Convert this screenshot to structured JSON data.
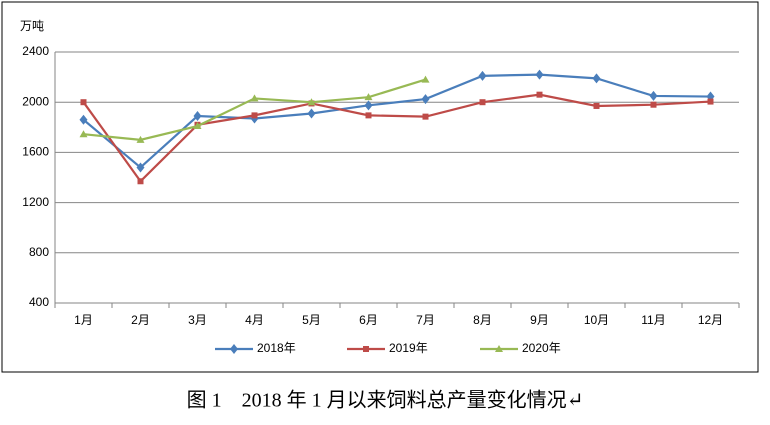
{
  "chart_data": {
    "type": "line",
    "y_label": "万吨",
    "caption": "图 1　2018 年 1 月以来饲料总产量变化情况↵",
    "categories": [
      "1月",
      "2月",
      "3月",
      "4月",
      "5月",
      "6月",
      "7月",
      "8月",
      "9月",
      "10月",
      "11月",
      "12月"
    ],
    "series": [
      {
        "name": "2018年",
        "color": "#4a7ebb",
        "marker": "diamond",
        "values": [
          1860,
          1480,
          1890,
          1870,
          1910,
          1975,
          2025,
          2210,
          2220,
          2190,
          2050,
          2045
        ]
      },
      {
        "name": "2019年",
        "color": "#be4b48",
        "marker": "square",
        "values": [
          2000,
          1370,
          1820,
          1895,
          1990,
          1895,
          1885,
          2000,
          2060,
          1970,
          1980,
          2005
        ]
      },
      {
        "name": "2020年",
        "color": "#98b954",
        "marker": "triangle",
        "values": [
          1745,
          1700,
          1810,
          2030,
          2000,
          2040,
          2180,
          null,
          null,
          null,
          null,
          null
        ]
      }
    ],
    "ylim": [
      400,
      2400
    ],
    "yticks": [
      400,
      800,
      1200,
      1600,
      2000,
      2400
    ],
    "grid": true
  }
}
